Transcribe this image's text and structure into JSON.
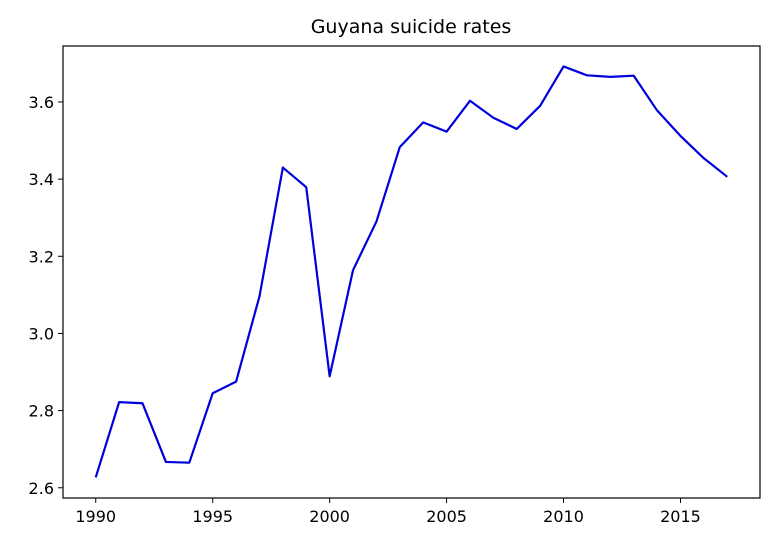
{
  "chart_data": {
    "type": "line",
    "title": "Guyana suicide rates",
    "xlabel": "",
    "ylabel": "",
    "xlim": [
      1988.6,
      2018.4
    ],
    "ylim": [
      2.5735,
      3.745
    ],
    "xticks": [
      1990,
      1995,
      2000,
      2005,
      2010,
      2015
    ],
    "yticks": [
      2.6,
      2.8,
      3.0,
      3.2,
      3.4,
      3.6
    ],
    "ytick_labels": [
      "2.6",
      "2.8",
      "3.0",
      "3.2",
      "3.4",
      "3.6"
    ],
    "grid": false,
    "line_color": "#0000dd",
    "series": [
      {
        "x": [
          1990,
          1991,
          1992,
          1993,
          1994,
          1995,
          1996,
          1997,
          1998,
          1999,
          2000,
          2001,
          2002,
          2003,
          2004,
          2005,
          2006,
          2007,
          2008,
          2009,
          2010,
          2011,
          2012,
          2013,
          2014,
          2015,
          2016,
          2017
        ],
        "values": [
          2.627,
          2.822,
          2.819,
          2.667,
          2.665,
          2.845,
          2.875,
          3.096,
          3.43,
          3.379,
          2.889,
          3.164,
          3.29,
          3.483,
          3.547,
          3.523,
          3.603,
          3.559,
          3.53,
          3.59,
          3.692,
          3.669,
          3.665,
          3.668,
          3.578,
          3.512,
          3.454,
          3.406
        ]
      }
    ]
  }
}
